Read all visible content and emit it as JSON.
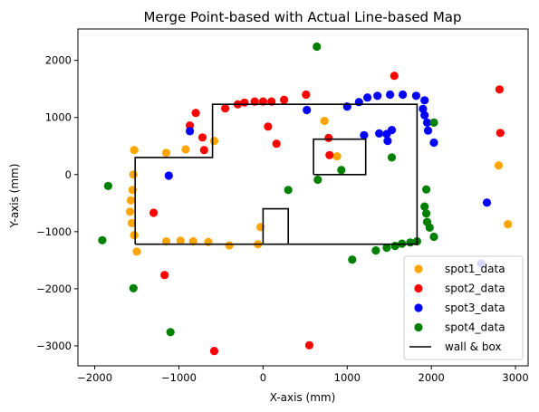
{
  "chart_data": {
    "type": "scatter",
    "title": "Merge Point-based with Actual Line-based Map",
    "xlabel": "X-axis (mm)",
    "ylabel": "Y-axis (mm)",
    "xlim": [
      -2200,
      3150
    ],
    "ylim": [
      -3350,
      2550
    ],
    "xticks": [
      -2000,
      -1000,
      0,
      1000,
      2000,
      3000
    ],
    "yticks": [
      -3000,
      -2000,
      -1000,
      0,
      1000,
      2000
    ],
    "grid": false,
    "legend_position": "lower-right",
    "series": [
      {
        "name": "spot1_data",
        "color": "#ffa500",
        "points": [
          [
            -1530,
            430
          ],
          [
            -1150,
            380
          ],
          [
            -920,
            440
          ],
          [
            -580,
            590
          ],
          [
            -1540,
            0
          ],
          [
            -1550,
            -270
          ],
          [
            -1570,
            -450
          ],
          [
            -1580,
            -650
          ],
          [
            -1560,
            -850
          ],
          [
            -1530,
            -1060
          ],
          [
            -1500,
            -1350
          ],
          [
            -1150,
            -1170
          ],
          [
            -980,
            -1160
          ],
          [
            -830,
            -1170
          ],
          [
            -650,
            -1180
          ],
          [
            -400,
            -1240
          ],
          [
            -60,
            -1220
          ],
          [
            -30,
            -920
          ],
          [
            730,
            940
          ],
          [
            880,
            320
          ],
          [
            2800,
            160
          ],
          [
            2910,
            -870
          ]
        ]
      },
      {
        "name": "spot2_data",
        "color": "#ff0000",
        "points": [
          [
            -800,
            1080
          ],
          [
            -870,
            860
          ],
          [
            -720,
            650
          ],
          [
            -700,
            430
          ],
          [
            -450,
            1160
          ],
          [
            -300,
            1230
          ],
          [
            -220,
            1260
          ],
          [
            -100,
            1280
          ],
          [
            0,
            1280
          ],
          [
            100,
            1280
          ],
          [
            250,
            1310
          ],
          [
            510,
            1400
          ],
          [
            60,
            840
          ],
          [
            160,
            540
          ],
          [
            780,
            640
          ],
          [
            790,
            340
          ],
          [
            1560,
            1730
          ],
          [
            2810,
            1490
          ],
          [
            2820,
            730
          ],
          [
            -1300,
            -670
          ],
          [
            -1170,
            -1760
          ],
          [
            -580,
            -3090
          ],
          [
            550,
            -2990
          ]
        ]
      },
      {
        "name": "spot3_data",
        "color": "#0000ff",
        "points": [
          [
            520,
            1130
          ],
          [
            1000,
            1190
          ],
          [
            1140,
            1270
          ],
          [
            1240,
            1350
          ],
          [
            1360,
            1380
          ],
          [
            1510,
            1400
          ],
          [
            1660,
            1400
          ],
          [
            1820,
            1380
          ],
          [
            1920,
            1300
          ],
          [
            1900,
            1150
          ],
          [
            1920,
            1040
          ],
          [
            1950,
            910
          ],
          [
            1960,
            770
          ],
          [
            2030,
            560
          ],
          [
            -870,
            760
          ],
          [
            -1120,
            -20
          ],
          [
            1200,
            690
          ],
          [
            1380,
            720
          ],
          [
            1470,
            710
          ],
          [
            1530,
            780
          ],
          [
            1480,
            590
          ],
          [
            2660,
            -490
          ],
          [
            2590,
            -1560
          ]
        ]
      },
      {
        "name": "spot4_data",
        "color": "#008000",
        "points": [
          [
            640,
            2240
          ],
          [
            650,
            -90
          ],
          [
            930,
            80
          ],
          [
            300,
            -270
          ],
          [
            1530,
            300
          ],
          [
            -1840,
            -200
          ],
          [
            -1910,
            -1150
          ],
          [
            -1540,
            -1990
          ],
          [
            -1100,
            -2760
          ],
          [
            1060,
            -1490
          ],
          [
            1340,
            -1330
          ],
          [
            1470,
            -1280
          ],
          [
            1570,
            -1250
          ],
          [
            1650,
            -1210
          ],
          [
            1750,
            -1190
          ],
          [
            1830,
            -1170
          ],
          [
            1920,
            -560
          ],
          [
            1940,
            -680
          ],
          [
            1950,
            -830
          ],
          [
            1980,
            -930
          ],
          [
            2030,
            -1090
          ],
          [
            2030,
            910
          ],
          [
            1940,
            -260
          ]
        ]
      }
    ],
    "wall_series": {
      "name": "wall & box",
      "color": "#000000",
      "segments": [
        [
          [
            -1520,
            -1220
          ],
          [
            1830,
            -1220
          ],
          [
            1830,
            1230
          ],
          [
            -600,
            1230
          ],
          [
            -600,
            300
          ],
          [
            -1520,
            300
          ],
          [
            -1520,
            -1220
          ]
        ],
        [
          [
            600,
            0
          ],
          [
            1220,
            0
          ],
          [
            1220,
            620
          ],
          [
            600,
            620
          ],
          [
            600,
            0
          ]
        ],
        [
          [
            0,
            -1220
          ],
          [
            0,
            -600
          ],
          [
            300,
            -600
          ],
          [
            300,
            -1220
          ]
        ]
      ]
    }
  }
}
